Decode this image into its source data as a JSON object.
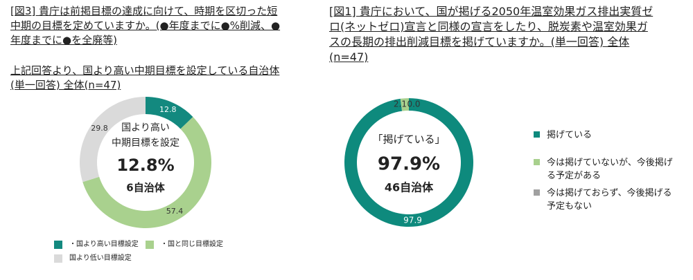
{
  "chart_data": [
    {
      "type": "donut",
      "title": "[図3] 貴庁は前掲目標の達成に向けて、時期を区切った短中期の目標を定めていますか。(●年度までに●%削減、●年度までに●を全廃等)",
      "subtitle": "上記回答より、国より高い中期目標を設定している自治体(単一回答) 全体(n=47)",
      "center_text": [
        "国より高い",
        "中期目標を設定",
        "12.8%",
        "6自治体"
      ],
      "categories": [
        "・国より高い目標設定",
        "・国と同じ目標設定",
        "国より低い目標設定"
      ],
      "values": [
        12.8,
        57.4,
        29.8
      ],
      "colors": [
        "#13897f",
        "#a9d18e",
        "#dadada"
      ]
    },
    {
      "type": "donut",
      "title": "[図1] 貴庁において、国が掲げる2050年温室効果ガス排出実質ゼロ(ネットゼロ)宣言と同様の宣言をしたり、脱炭素や温室効果ガスの長期の排出削減目標を掲げていますか。(単一回答) 全体(n=47)",
      "center_text": [
        "「掲げている」",
        "97.9%",
        "46自治体"
      ],
      "categories": [
        "掲げている",
        "今は掲げていないが、今後掲げる予定がある",
        "今は掲げておらず、今後掲げる予定もない"
      ],
      "values": [
        97.9,
        2.1,
        0.0
      ],
      "value_labels": [
        "97.9",
        "2.1",
        "0.0"
      ],
      "colors": [
        "#0e8a7d",
        "#a8d08d",
        "#a0a0a0"
      ]
    }
  ]
}
